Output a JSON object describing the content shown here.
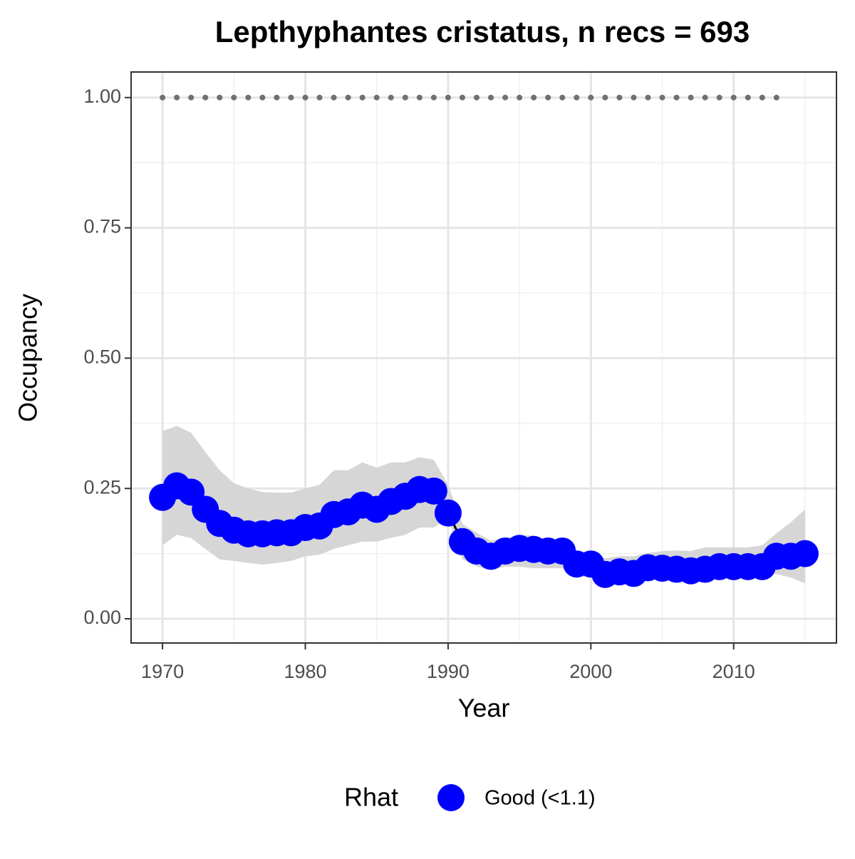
{
  "chart_data": {
    "type": "line",
    "title": "Lepthyphantes cristatus, n recs = 693",
    "x_label": "Year",
    "y_label": "Occupancy",
    "legend_title": "Rhat",
    "x": [
      1970,
      1971,
      1972,
      1973,
      1974,
      1975,
      1976,
      1977,
      1978,
      1979,
      1980,
      1981,
      1982,
      1983,
      1984,
      1985,
      1986,
      1987,
      1988,
      1989,
      1990,
      1991,
      1992,
      1993,
      1994,
      1995,
      1996,
      1997,
      1998,
      1999,
      2000,
      2001,
      2002,
      2003,
      2004,
      2005,
      2006,
      2007,
      2008,
      2009,
      2010,
      2011,
      2012,
      2013,
      2014,
      2015
    ],
    "series": [
      {
        "name": "Good (<1.1)",
        "color": "#0000ff",
        "line_color": "#000000",
        "values": [
          0.233,
          0.255,
          0.243,
          0.21,
          0.183,
          0.17,
          0.163,
          0.163,
          0.165,
          0.165,
          0.175,
          0.178,
          0.2,
          0.205,
          0.218,
          0.21,
          0.225,
          0.235,
          0.248,
          0.245,
          0.203,
          0.148,
          0.13,
          0.12,
          0.13,
          0.135,
          0.133,
          0.13,
          0.13,
          0.105,
          0.105,
          0.085,
          0.09,
          0.087,
          0.098,
          0.097,
          0.095,
          0.092,
          0.095,
          0.1,
          0.1,
          0.1,
          0.1,
          0.12,
          0.12,
          0.125
        ],
        "upper": [
          0.36,
          0.37,
          0.357,
          0.32,
          0.285,
          0.26,
          0.25,
          0.243,
          0.242,
          0.242,
          0.25,
          0.257,
          0.285,
          0.285,
          0.3,
          0.29,
          0.3,
          0.3,
          0.31,
          0.305,
          0.257,
          0.182,
          0.165,
          0.15,
          0.155,
          0.16,
          0.16,
          0.15,
          0.155,
          0.127,
          0.123,
          0.116,
          0.12,
          0.12,
          0.126,
          0.13,
          0.131,
          0.13,
          0.137,
          0.137,
          0.137,
          0.137,
          0.141,
          0.164,
          0.185,
          0.21
        ],
        "lower": [
          0.141,
          0.161,
          0.155,
          0.134,
          0.114,
          0.111,
          0.107,
          0.104,
          0.107,
          0.111,
          0.12,
          0.123,
          0.134,
          0.141,
          0.148,
          0.148,
          0.155,
          0.161,
          0.175,
          0.175,
          0.193,
          0.114,
          0.1,
          0.093,
          0.1,
          0.1,
          0.097,
          0.097,
          0.097,
          0.082,
          0.079,
          0.073,
          0.073,
          0.071,
          0.077,
          0.077,
          0.074,
          0.074,
          0.077,
          0.079,
          0.079,
          0.079,
          0.082,
          0.086,
          0.079,
          0.068
        ],
        "band_color": "#d6d6d6"
      }
    ],
    "reference_points": {
      "color": "#707070",
      "x": [
        1970,
        1971,
        1972,
        1973,
        1974,
        1975,
        1976,
        1977,
        1978,
        1979,
        1980,
        1981,
        1982,
        1983,
        1984,
        1985,
        1986,
        1987,
        1988,
        1989,
        1990,
        1991,
        1992,
        1993,
        1994,
        1995,
        1996,
        1997,
        1998,
        1999,
        2000,
        2001,
        2002,
        2003,
        2004,
        2005,
        2006,
        2007,
        2008,
        2009,
        2010,
        2011,
        2012,
        2013
      ],
      "values": [
        1,
        1,
        1,
        1,
        1,
        1,
        1,
        1,
        1,
        1,
        1,
        1,
        1,
        1,
        1,
        1,
        1,
        1,
        1,
        1,
        1,
        1,
        1,
        1,
        1,
        1,
        1,
        1,
        1,
        1,
        1,
        1,
        1,
        1,
        1,
        1,
        1,
        1,
        1,
        1,
        1,
        1,
        1,
        1
      ]
    },
    "xlim": [
      1967.8,
      2017.2
    ],
    "ylim": [
      -0.0465,
      1.049
    ],
    "xticks": [
      1970,
      1980,
      1990,
      2000,
      2010
    ],
    "yticks": [
      {
        "value": 0,
        "label": "0.00"
      },
      {
        "value": 0.25,
        "label": "0.25"
      },
      {
        "value": 0.5,
        "label": "0.50"
      },
      {
        "value": 0.75,
        "label": "0.75"
      },
      {
        "value": 1,
        "label": "1.00"
      }
    ],
    "x_minor_ticks": [
      1975,
      1985,
      1995,
      2005,
      2015
    ],
    "y_minor_ticks": [
      0.125,
      0.375,
      0.625,
      0.875
    ],
    "grid": true,
    "legend_position": "bottom"
  }
}
